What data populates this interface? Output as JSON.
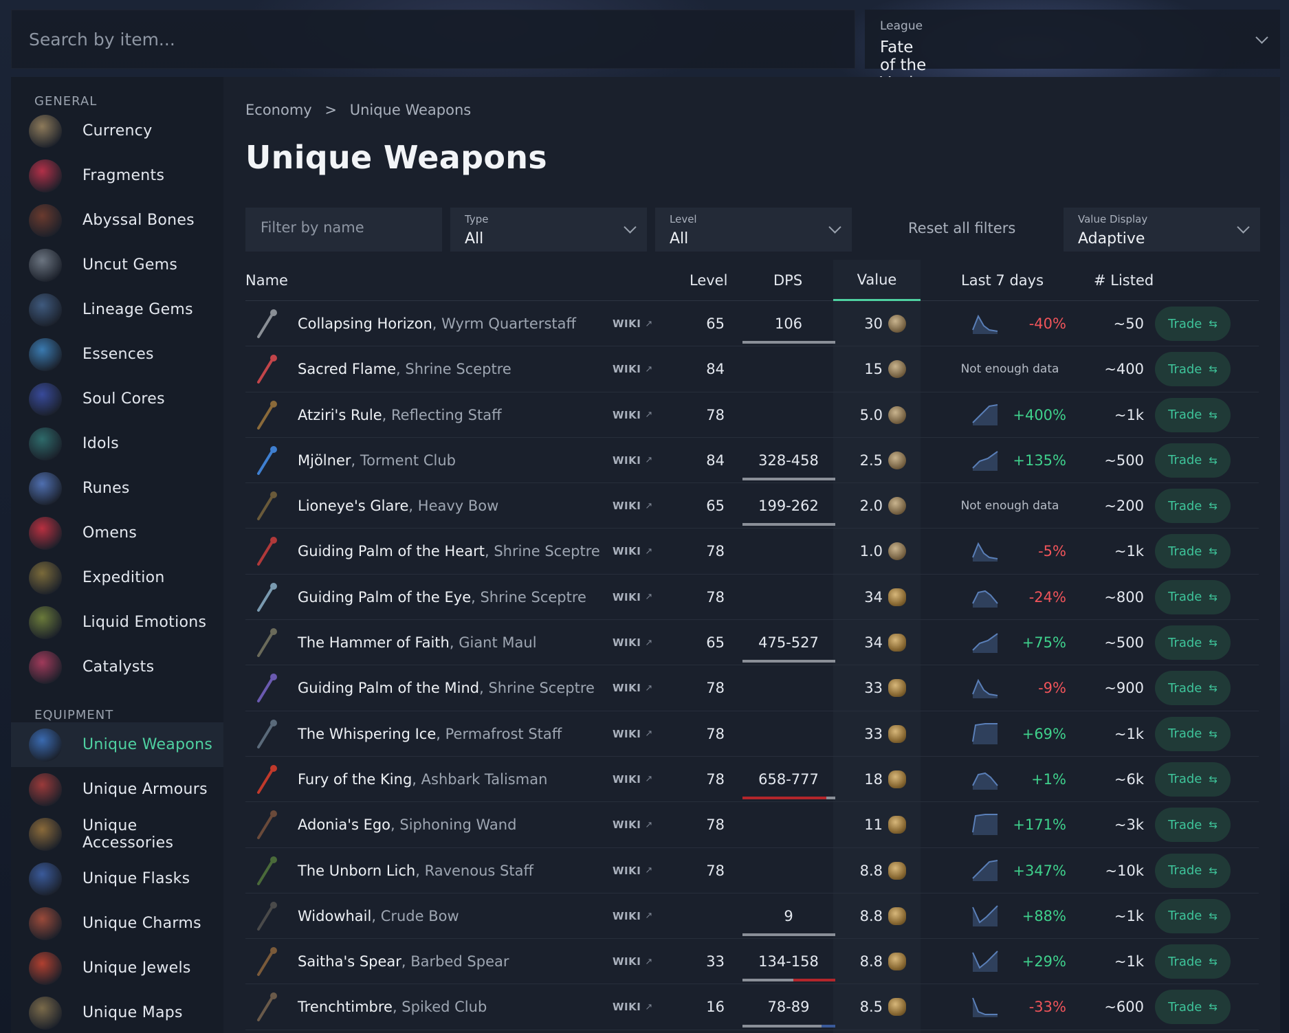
{
  "search": {
    "placeholder": "Search by item..."
  },
  "league": {
    "label": "League",
    "value": "Fate of the Vaal"
  },
  "sidebar": {
    "general_label": "GENERAL",
    "general": [
      {
        "label": "Currency",
        "icon": "currency-icon",
        "color": "#8d7a5a"
      },
      {
        "label": "Fragments",
        "icon": "fragments-icon",
        "color": "#b23048"
      },
      {
        "label": "Abyssal Bones",
        "icon": "abyssal-bones-icon",
        "color": "#6a3a2e"
      },
      {
        "label": "Uncut Gems",
        "icon": "uncut-gems-icon",
        "color": "#6b7480"
      },
      {
        "label": "Lineage Gems",
        "icon": "lineage-gems-icon",
        "color": "#3f5a7e"
      },
      {
        "label": "Essences",
        "icon": "essences-icon",
        "color": "#3a7ab0"
      },
      {
        "label": "Soul Cores",
        "icon": "soul-cores-icon",
        "color": "#384a9a"
      },
      {
        "label": "Idols",
        "icon": "idols-icon",
        "color": "#2e6a6a"
      },
      {
        "label": "Runes",
        "icon": "runes-icon",
        "color": "#4f6fb0"
      },
      {
        "label": "Omens",
        "icon": "omens-icon",
        "color": "#b83040"
      },
      {
        "label": "Expedition",
        "icon": "expedition-icon",
        "color": "#7a6a3a"
      },
      {
        "label": "Liquid Emotions",
        "icon": "liquid-emotions-icon",
        "color": "#6a7a3a"
      },
      {
        "label": "Catalysts",
        "icon": "catalysts-icon",
        "color": "#a03a5a"
      }
    ],
    "equipment_label": "EQUIPMENT",
    "equipment": [
      {
        "label": "Unique Weapons",
        "icon": "unique-weapons-icon",
        "color": "#3a6ab0",
        "active": true
      },
      {
        "label": "Unique Armours",
        "icon": "unique-armours-icon",
        "color": "#9a3a3a"
      },
      {
        "label": "Unique Accessories",
        "icon": "unique-accessories-icon",
        "color": "#8a6a3a"
      },
      {
        "label": "Unique Flasks",
        "icon": "unique-flasks-icon",
        "color": "#3a5a9a"
      },
      {
        "label": "Unique Charms",
        "icon": "unique-charms-icon",
        "color": "#9a4a3a"
      },
      {
        "label": "Unique Jewels",
        "icon": "unique-jewels-icon",
        "color": "#b04030"
      },
      {
        "label": "Unique Maps",
        "icon": "unique-maps-icon",
        "color": "#7a6a4a"
      }
    ]
  },
  "breadcrumb": {
    "root": "Economy",
    "separator": ">",
    "current": "Unique Weapons"
  },
  "page_title": "Unique Weapons",
  "filters": {
    "name_placeholder": "Filter by name",
    "type_label": "Type",
    "type_value": "All",
    "level_label": "Level",
    "level_value": "All",
    "reset": "Reset all filters",
    "display_label": "Value Display",
    "display_value": "Adaptive"
  },
  "columns": {
    "name": "Name",
    "level": "Level",
    "dps": "DPS",
    "value": "Value",
    "last7": "Last 7 days",
    "listed": "# Listed"
  },
  "wiki_label": "WIKI",
  "trade_label": "Trade",
  "colors": {
    "accent": "#4fd1a1",
    "negative": "#f0545a",
    "positive": "#3fd18c"
  },
  "rows": [
    {
      "name": "Collapsing Horizon",
      "type": ", Wyrm Quarterstaff",
      "level": "65",
      "dps": "106",
      "value": "30",
      "currency": "exalted",
      "trend": "-40%",
      "trend_shape": "peak-drop",
      "listed": "~50",
      "dps_fill": 1,
      "icon_color": "#8a8f96"
    },
    {
      "name": "Sacred Flame",
      "type": ", Shrine Sceptre",
      "level": "84",
      "dps": "",
      "value": "15",
      "currency": "exalted",
      "trend": "Not enough data",
      "trend_shape": "none",
      "listed": "~400",
      "icon_color": "#c2454a"
    },
    {
      "name": "Atziri's Rule",
      "type": ", Reflecting Staff",
      "level": "78",
      "dps": "",
      "value": "5.0",
      "currency": "exalted",
      "trend": "+400%",
      "trend_shape": "rise",
      "listed": "~1k",
      "icon_color": "#8a6a3a"
    },
    {
      "name": "Mjölner",
      "type": ", Torment Club",
      "level": "84",
      "dps": "328-458",
      "value": "2.5",
      "currency": "exalted",
      "trend": "+135%",
      "trend_shape": "rise-flat",
      "listed": "~500",
      "dps_fill": 1,
      "icon_color": "#3f7fd0"
    },
    {
      "name": "Lioneye's Glare",
      "type": ", Heavy Bow",
      "level": "65",
      "dps": "199-262",
      "value": "2.0",
      "currency": "exalted",
      "trend": "Not enough data",
      "trend_shape": "none",
      "listed": "~200",
      "dps_fill": 1,
      "icon_color": "#6a5a3a"
    },
    {
      "name": "Guiding Palm of the Heart",
      "type": ", Shrine Sceptre",
      "level": "78",
      "dps": "",
      "value": "1.0",
      "currency": "exalted",
      "trend": "-5%",
      "trend_shape": "peak-drop",
      "listed": "~1k",
      "icon_color": "#b0393a"
    },
    {
      "name": "Guiding Palm of the Eye",
      "type": ", Shrine Sceptre",
      "level": "78",
      "dps": "",
      "value": "34",
      "currency": "divine",
      "trend": "-24%",
      "trend_shape": "hump",
      "listed": "~800",
      "icon_color": "#7a9ab0"
    },
    {
      "name": "The Hammer of Faith",
      "type": ", Giant Maul",
      "level": "65",
      "dps": "475-527",
      "value": "34",
      "currency": "divine",
      "trend": "+75%",
      "trend_shape": "rise-flat",
      "listed": "~500",
      "dps_fill": 1,
      "icon_color": "#6a6a5a"
    },
    {
      "name": "Guiding Palm of the Mind",
      "type": ", Shrine Sceptre",
      "level": "78",
      "dps": "",
      "value": "33",
      "currency": "divine",
      "trend": "-9%",
      "trend_shape": "peak-drop",
      "listed": "~900",
      "icon_color": "#6a5ab0"
    },
    {
      "name": "The Whispering Ice",
      "type": ", Permafrost Staff",
      "level": "78",
      "dps": "",
      "value": "33",
      "currency": "divine",
      "trend": "+69%",
      "trend_shape": "plateau",
      "listed": "~1k",
      "icon_color": "#5a6a7a"
    },
    {
      "name": "Fury of the King",
      "type": ", Ashbark Talisman",
      "level": "78",
      "dps": "658-777",
      "value": "18",
      "currency": "divine",
      "trend": "+1%",
      "trend_shape": "hump",
      "listed": "~6k",
      "dps_fill": 0.9,
      "dps_fill_color": "#b3262b",
      "icon_color": "#c0392b"
    },
    {
      "name": "Adonia's Ego",
      "type": ", Siphoning Wand",
      "level": "78",
      "dps": "",
      "value": "11",
      "currency": "divine",
      "trend": "+171%",
      "trend_shape": "plateau",
      "listed": "~3k",
      "icon_color": "#6a4a3a"
    },
    {
      "name": "The Unborn Lich",
      "type": ", Ravenous Staff",
      "level": "78",
      "dps": "",
      "value": "8.8",
      "currency": "divine",
      "trend": "+347%",
      "trend_shape": "rise",
      "listed": "~10k",
      "icon_color": "#4a6a3a"
    },
    {
      "name": "Widowhail",
      "type": ", Crude Bow",
      "level": "",
      "dps": "9",
      "value": "8.8",
      "currency": "divine",
      "trend": "+88%",
      "trend_shape": "dip-rise",
      "listed": "~1k",
      "dps_fill": 1,
      "icon_color": "#4a4a4a"
    },
    {
      "name": "Saitha's Spear",
      "type": ", Barbed Spear",
      "level": "33",
      "dps": "134-158",
      "value": "8.8",
      "currency": "divine",
      "trend": "+29%",
      "trend_shape": "dip-rise",
      "listed": "~1k",
      "dps_fill": 0.55,
      "dps_fill_color": "#8a8f98",
      "dps_rest_color": "#b3262b",
      "icon_color": "#7a5a3a"
    },
    {
      "name": "Trenchtimbre",
      "type": ", Spiked Club",
      "level": "16",
      "dps": "78-89",
      "value": "8.5",
      "currency": "divine",
      "trend": "-33%",
      "trend_shape": "drop",
      "listed": "~600",
      "dps_fill": 0.85,
      "dps_rest_color": "#3a5a9a",
      "icon_color": "#6a5a4a"
    }
  ]
}
